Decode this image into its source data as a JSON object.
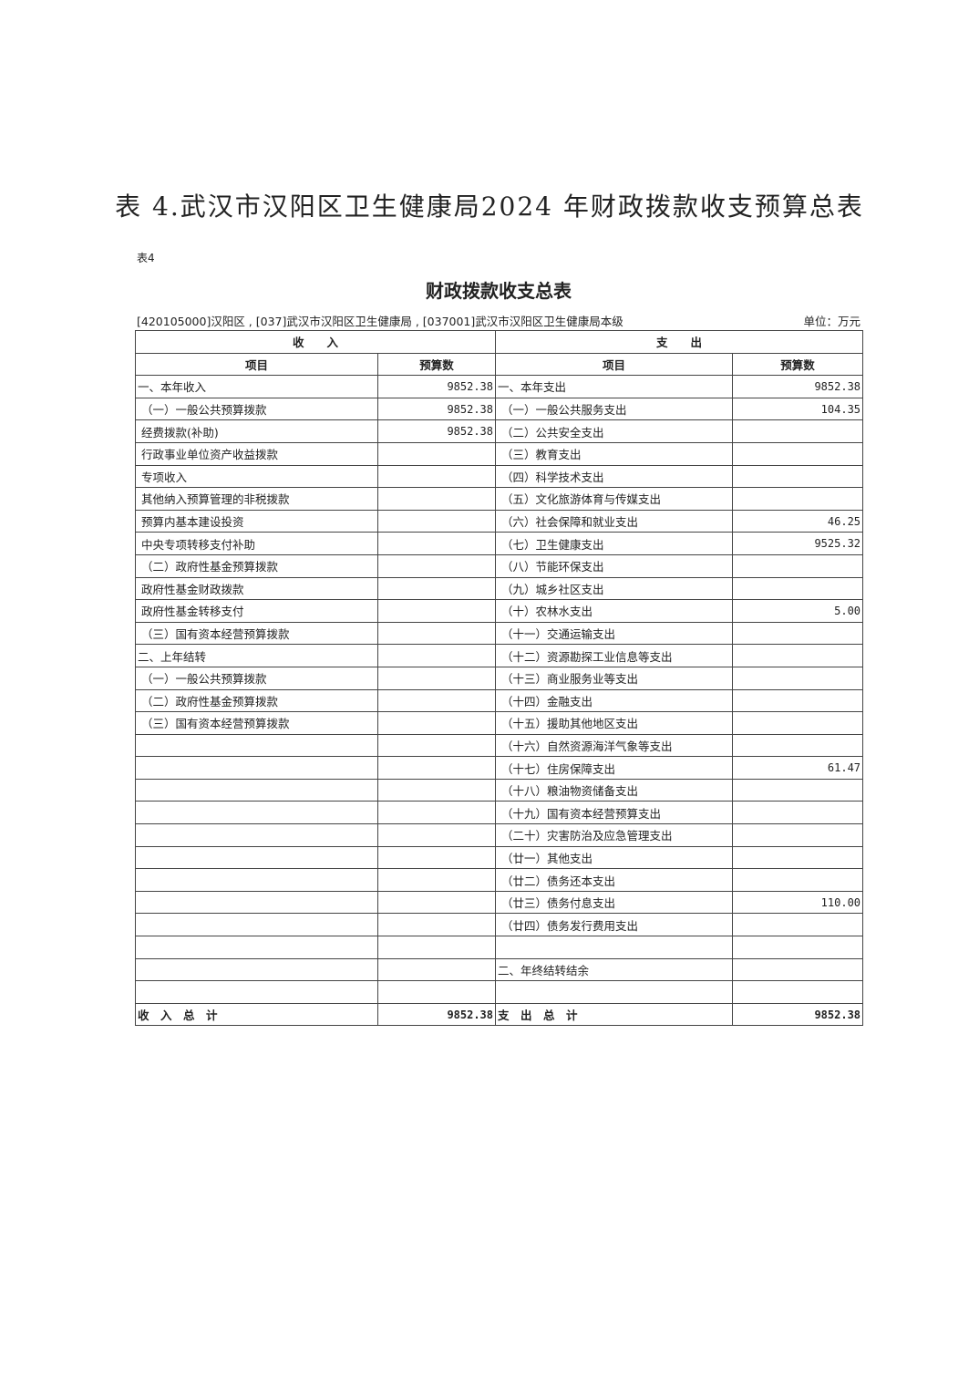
{
  "title": "表 4.武汉市汉阳区卫生健康局2024 年财政拨款收支预算总表",
  "table_tag": "表4",
  "subtitle": "财政拨款收支总表",
  "meta": "[420105000]汉阳区 , [037]武汉市汉阳区卫生健康局 , [037001]武汉市汉阳区卫生健康局本级",
  "unit": "单位：万元",
  "headers": {
    "income": "收　　入",
    "expense": "支　　出",
    "item": "项目",
    "budget": "预算数"
  },
  "rows": [
    {
      "li": "一、本年收入",
      "lv": "9852.38",
      "ri": "一、本年支出",
      "rv": "9852.38",
      "lt": true,
      "rt": true
    },
    {
      "li": "（一）一般公共预算拨款",
      "lv": "9852.38",
      "ri": "（一）一般公共服务支出",
      "rv": "104.35"
    },
    {
      "li": "经费拨款(补助)",
      "lv": "9852.38",
      "ri": "（二）公共安全支出",
      "rv": ""
    },
    {
      "li": "行政事业单位资产收益拨款",
      "lv": "",
      "ri": "（三）教育支出",
      "rv": ""
    },
    {
      "li": "专项收入",
      "lv": "",
      "ri": "（四）科学技术支出",
      "rv": ""
    },
    {
      "li": "其他纳入预算管理的非税拨款",
      "lv": "",
      "ri": "（五）文化旅游体育与传媒支出",
      "rv": ""
    },
    {
      "li": "预算内基本建设投资",
      "lv": "",
      "ri": "（六）社会保障和就业支出",
      "rv": "46.25"
    },
    {
      "li": "中央专项转移支付补助",
      "lv": "",
      "ri": "（七）卫生健康支出",
      "rv": "9525.32"
    },
    {
      "li": "（二）政府性基金预算拨款",
      "lv": "",
      "ri": "（八）节能环保支出",
      "rv": ""
    },
    {
      "li": "政府性基金财政拨款",
      "lv": "",
      "ri": "（九）城乡社区支出",
      "rv": ""
    },
    {
      "li": "政府性基金转移支付",
      "lv": "",
      "ri": "（十）农林水支出",
      "rv": "5.00"
    },
    {
      "li": "（三）国有资本经营预算拨款",
      "lv": "",
      "ri": "（十一）交通运输支出",
      "rv": ""
    },
    {
      "li": "二、上年结转",
      "lv": "",
      "ri": "（十二）资源勘探工业信息等支出",
      "rv": "",
      "lt": true
    },
    {
      "li": "（一）一般公共预算拨款",
      "lv": "",
      "ri": "（十三）商业服务业等支出",
      "rv": ""
    },
    {
      "li": "（二）政府性基金预算拨款",
      "lv": "",
      "ri": "（十四）金融支出",
      "rv": ""
    },
    {
      "li": "（三）国有资本经营预算拨款",
      "lv": "",
      "ri": "（十五）援助其他地区支出",
      "rv": ""
    },
    {
      "li": "",
      "lv": "",
      "ri": "（十六）自然资源海洋气象等支出",
      "rv": ""
    },
    {
      "li": "",
      "lv": "",
      "ri": "（十七）住房保障支出",
      "rv": "61.47"
    },
    {
      "li": "",
      "lv": "",
      "ri": "（十八）粮油物资储备支出",
      "rv": ""
    },
    {
      "li": "",
      "lv": "",
      "ri": "（十九）国有资本经营预算支出",
      "rv": ""
    },
    {
      "li": "",
      "lv": "",
      "ri": "（二十）灾害防治及应急管理支出",
      "rv": ""
    },
    {
      "li": "",
      "lv": "",
      "ri": "（廿一）其他支出",
      "rv": ""
    },
    {
      "li": "",
      "lv": "",
      "ri": "（廿二）债务还本支出",
      "rv": ""
    },
    {
      "li": "",
      "lv": "",
      "ri": "（廿三）债务付息支出",
      "rv": "110.00"
    },
    {
      "li": "",
      "lv": "",
      "ri": "（廿四）债务发行费用支出",
      "rv": ""
    },
    {
      "li": "",
      "lv": "",
      "ri": "",
      "rv": ""
    },
    {
      "li": "",
      "lv": "",
      "ri": "二、年终结转结余",
      "rv": "",
      "rt": true
    },
    {
      "li": "",
      "lv": "",
      "ri": "",
      "rv": ""
    }
  ],
  "total": {
    "income_label": "收　入　总　计",
    "income_value": "9852.38",
    "expense_label": "支　出　总　计",
    "expense_value": "9852.38"
  }
}
